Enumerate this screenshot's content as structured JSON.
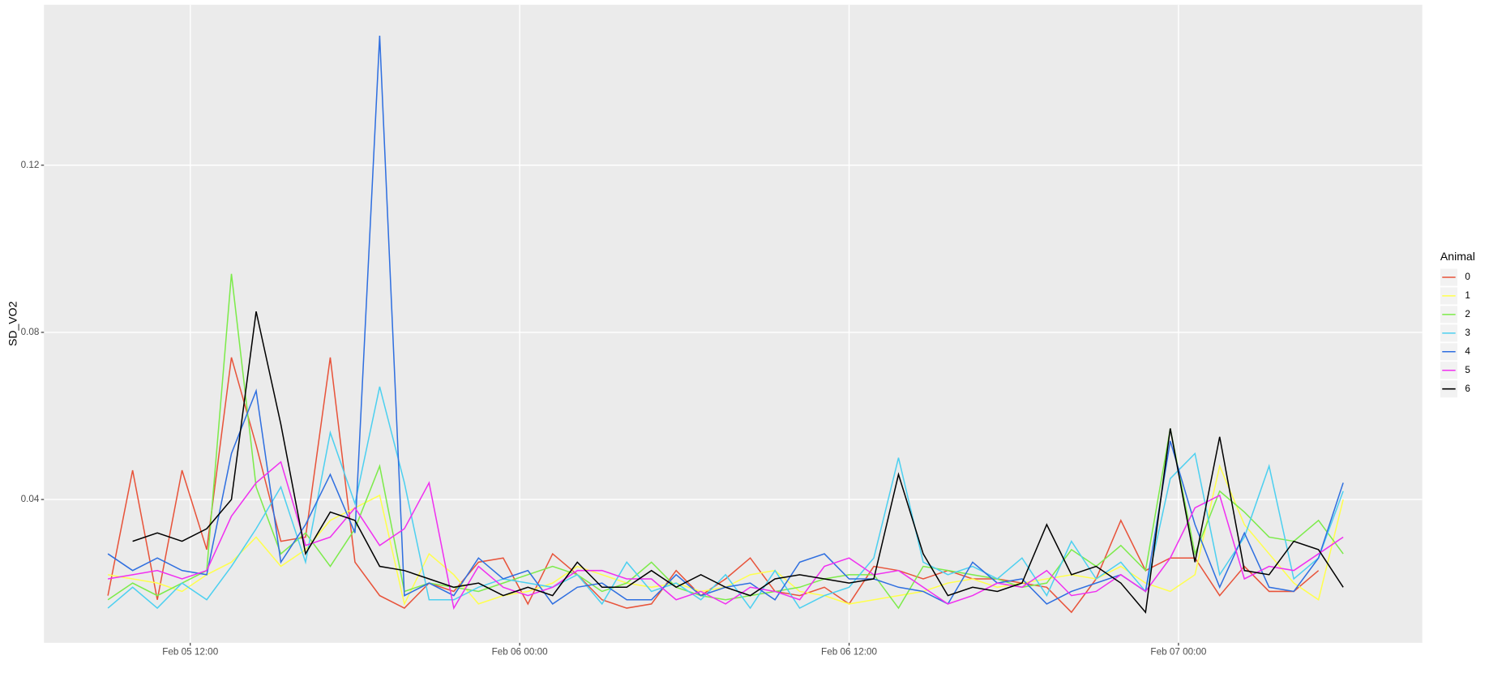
{
  "chart_data": {
    "type": "line",
    "ylabel": "SD_VO2",
    "legend_title": "Animal",
    "legend_position": "right",
    "grid": true,
    "x": [
      9,
      9.9,
      10.8,
      11.7,
      12.6,
      13.5,
      14.4,
      15.3,
      16.2,
      17.1,
      18,
      18.9,
      19.8,
      20.7,
      21.6,
      22.5,
      23.4,
      24.3,
      25.2,
      26.1,
      27,
      27.9,
      28.8,
      29.7,
      30.6,
      31.5,
      32.4,
      33.3,
      34.2,
      35.1,
      36,
      36.9,
      37.8,
      38.7,
      39.6,
      40.5,
      41.4,
      42.3,
      43.2,
      44.1,
      45,
      45.9,
      46.8,
      47.7,
      48.6,
      49.5,
      50.4,
      51.3,
      52.2,
      53.1,
      54,
      54.9
    ],
    "xlim": [
      6.67,
      56.88
    ],
    "xticks": [
      {
        "value": 12,
        "label": "Feb 05 12:00"
      },
      {
        "value": 24,
        "label": "Feb 06 00:00"
      },
      {
        "value": 36,
        "label": "Feb 06 12:00"
      },
      {
        "value": 48,
        "label": "Feb 07 00:00"
      }
    ],
    "ylim": [
      0.0057,
      0.1584
    ],
    "yticks": [
      0.04,
      0.08,
      0.12
    ],
    "series": [
      {
        "name": "0",
        "color": "#E8533A",
        "values": [
          0.017,
          0.047,
          0.016,
          0.047,
          0.028,
          0.074,
          0.053,
          0.03,
          0.031,
          0.074,
          0.025,
          0.017,
          0.014,
          0.02,
          0.018,
          0.025,
          0.026,
          0.015,
          0.027,
          0.022,
          0.016,
          0.014,
          0.015,
          0.023,
          0.017,
          0.021,
          0.026,
          0.018,
          0.017,
          0.019,
          0.015,
          0.024,
          0.023,
          0.021,
          0.023,
          0.021,
          0.021,
          0.02,
          0.019,
          0.013,
          0.021,
          0.035,
          0.023,
          0.026,
          0.026,
          0.017,
          0.024,
          0.018,
          0.018,
          0.023,
          null,
          null
        ]
      },
      {
        "name": "1",
        "color": "#FFFF4D",
        "values": [
          0.022,
          0.021,
          0.02,
          0.018,
          0.022,
          0.025,
          0.031,
          0.024,
          0.028,
          0.035,
          0.038,
          0.041,
          0.015,
          0.027,
          0.022,
          0.015,
          0.017,
          0.018,
          0.02,
          0.024,
          0.022,
          0.02,
          0.019,
          0.02,
          0.018,
          0.019,
          0.022,
          0.023,
          0.018,
          0.017,
          0.015,
          0.016,
          0.017,
          0.018,
          0.02,
          0.021,
          0.019,
          0.02,
          0.021,
          0.022,
          0.021,
          0.024,
          0.02,
          0.018,
          0.022,
          0.048,
          0.034,
          0.027,
          0.02,
          0.016,
          0.04,
          null
        ]
      },
      {
        "name": "2",
        "color": "#7CEB4A",
        "values": [
          0.016,
          0.02,
          0.017,
          0.02,
          0.023,
          0.094,
          0.043,
          0.027,
          0.032,
          0.024,
          0.033,
          0.048,
          0.018,
          0.02,
          0.019,
          0.018,
          0.02,
          0.022,
          0.024,
          0.022,
          0.018,
          0.02,
          0.025,
          0.019,
          0.017,
          0.016,
          0.017,
          0.018,
          0.019,
          0.021,
          0.022,
          0.022,
          0.014,
          0.024,
          0.023,
          0.022,
          0.021,
          0.019,
          0.02,
          0.028,
          0.024,
          0.029,
          0.023,
          0.057,
          0.027,
          0.042,
          0.037,
          0.031,
          0.03,
          0.035,
          0.027,
          null
        ]
      },
      {
        "name": "3",
        "color": "#4DD0F0",
        "values": [
          0.014,
          0.019,
          0.014,
          0.02,
          0.016,
          0.024,
          0.033,
          0.043,
          0.025,
          0.056,
          0.039,
          0.067,
          0.044,
          0.016,
          0.016,
          0.019,
          0.021,
          0.02,
          0.019,
          0.022,
          0.015,
          0.025,
          0.018,
          0.02,
          0.016,
          0.022,
          0.014,
          0.023,
          0.014,
          0.017,
          0.019,
          0.026,
          0.05,
          0.025,
          0.022,
          0.024,
          0.021,
          0.026,
          0.017,
          0.03,
          0.021,
          0.025,
          0.018,
          0.045,
          0.051,
          0.022,
          0.031,
          0.048,
          0.021,
          0.026,
          0.042,
          null
        ]
      },
      {
        "name": "4",
        "color": "#2F6FE0",
        "values": [
          0.027,
          0.023,
          0.026,
          0.023,
          0.022,
          0.051,
          0.066,
          0.025,
          0.034,
          0.046,
          0.032,
          0.151,
          0.017,
          0.02,
          0.017,
          0.026,
          0.021,
          0.023,
          0.015,
          0.019,
          0.02,
          0.016,
          0.016,
          0.022,
          0.017,
          0.019,
          0.02,
          0.016,
          0.025,
          0.027,
          0.021,
          0.021,
          0.019,
          0.018,
          0.015,
          0.025,
          0.02,
          0.021,
          0.015,
          0.018,
          0.02,
          0.022,
          0.018,
          0.054,
          0.034,
          0.019,
          0.032,
          0.019,
          0.018,
          0.026,
          0.044,
          null
        ]
      },
      {
        "name": "5",
        "color": "#F030F0",
        "values": [
          0.021,
          0.022,
          0.023,
          0.021,
          0.023,
          0.036,
          0.044,
          0.049,
          0.029,
          0.031,
          0.038,
          0.029,
          0.033,
          0.044,
          0.014,
          0.024,
          0.019,
          0.017,
          0.019,
          0.023,
          0.023,
          0.021,
          0.021,
          0.016,
          0.018,
          0.015,
          0.019,
          0.018,
          0.016,
          0.024,
          0.026,
          0.022,
          0.023,
          0.019,
          0.015,
          0.017,
          0.02,
          0.019,
          0.023,
          0.017,
          0.018,
          0.022,
          0.018,
          0.026,
          0.038,
          0.041,
          0.021,
          0.024,
          0.023,
          0.027,
          0.031,
          null
        ]
      },
      {
        "name": "6",
        "color": "#000000",
        "values": [
          null,
          0.03,
          0.032,
          0.03,
          0.033,
          0.04,
          0.085,
          0.058,
          0.027,
          0.037,
          0.035,
          0.024,
          0.023,
          0.021,
          0.019,
          0.02,
          0.017,
          0.019,
          0.017,
          0.025,
          0.019,
          0.019,
          0.023,
          0.019,
          0.022,
          0.019,
          0.017,
          0.021,
          0.022,
          0.021,
          0.02,
          0.021,
          0.046,
          0.027,
          0.017,
          0.019,
          0.018,
          0.02,
          0.034,
          0.022,
          0.024,
          0.02,
          0.013,
          0.057,
          0.025,
          0.055,
          0.023,
          0.022,
          0.03,
          0.028,
          0.019,
          null
        ]
      }
    ]
  }
}
